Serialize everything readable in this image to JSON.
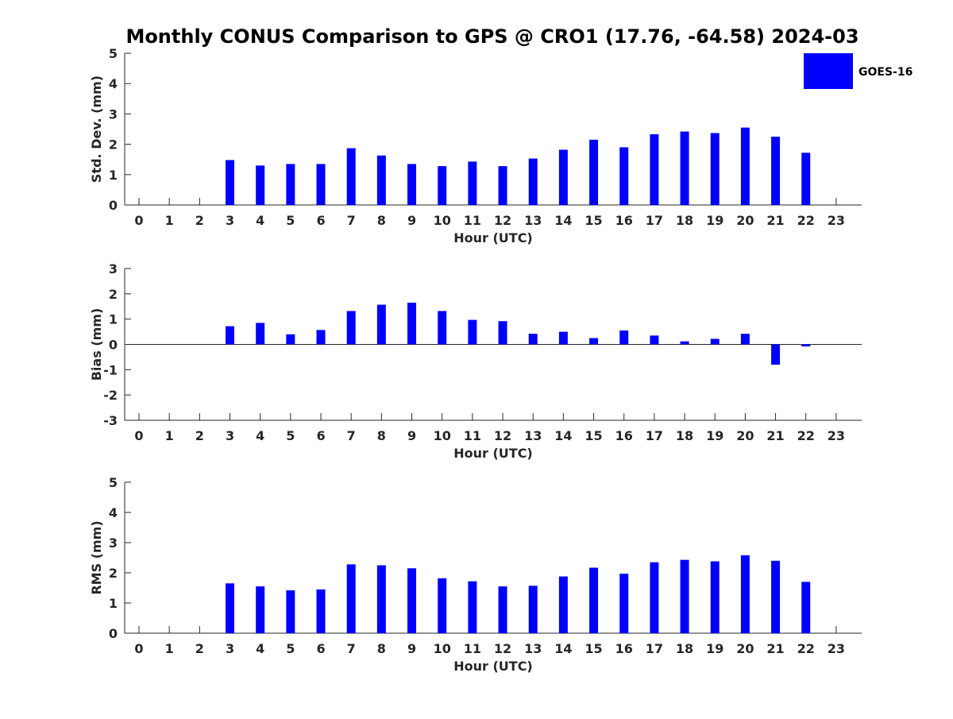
{
  "title": "Monthly CONUS Comparison to GPS @ CRO1 (17.76, -64.58) 2024-03",
  "legend": {
    "label": "GOES-16",
    "color": "#0000ff",
    "placement": "top-right"
  },
  "chart_data": [
    {
      "type": "bar",
      "ylabel": "Std. Dev. (mm)",
      "xlabel": "Hour (UTC)",
      "ylim": [
        0,
        5
      ],
      "yticks": [
        0,
        1,
        2,
        3,
        4,
        5
      ],
      "categories": [
        "0",
        "1",
        "2",
        "3",
        "4",
        "5",
        "6",
        "7",
        "8",
        "9",
        "10",
        "11",
        "12",
        "13",
        "14",
        "15",
        "16",
        "17",
        "18",
        "19",
        "20",
        "21",
        "22",
        "23"
      ],
      "series": [
        {
          "name": "GOES-16",
          "values": [
            null,
            null,
            null,
            1.48,
            1.3,
            1.35,
            1.35,
            1.87,
            1.63,
            1.35,
            1.28,
            1.43,
            1.28,
            1.53,
            1.82,
            2.15,
            1.9,
            2.33,
            2.42,
            2.37,
            2.55,
            2.25,
            1.72,
            null
          ]
        }
      ]
    },
    {
      "type": "bar",
      "ylabel": "Bias (mm)",
      "xlabel": "Hour (UTC)",
      "ylim": [
        -3,
        3
      ],
      "yticks": [
        -3,
        -2,
        -1,
        0,
        1,
        2,
        3
      ],
      "categories": [
        "0",
        "1",
        "2",
        "3",
        "4",
        "5",
        "6",
        "7",
        "8",
        "9",
        "10",
        "11",
        "12",
        "13",
        "14",
        "15",
        "16",
        "17",
        "18",
        "19",
        "20",
        "21",
        "22",
        "23"
      ],
      "series": [
        {
          "name": "GOES-16",
          "values": [
            null,
            null,
            null,
            0.72,
            0.85,
            0.4,
            0.57,
            1.32,
            1.57,
            1.65,
            1.32,
            0.97,
            0.92,
            0.42,
            0.5,
            0.25,
            0.55,
            0.35,
            0.12,
            0.22,
            0.42,
            -0.8,
            -0.08,
            null
          ]
        }
      ]
    },
    {
      "type": "bar",
      "ylabel": "RMS (mm)",
      "xlabel": "Hour (UTC)",
      "ylim": [
        0,
        5
      ],
      "yticks": [
        0,
        1,
        2,
        3,
        4,
        5
      ],
      "categories": [
        "0",
        "1",
        "2",
        "3",
        "4",
        "5",
        "6",
        "7",
        "8",
        "9",
        "10",
        "11",
        "12",
        "13",
        "14",
        "15",
        "16",
        "17",
        "18",
        "19",
        "20",
        "21",
        "22",
        "23"
      ],
      "series": [
        {
          "name": "GOES-16",
          "values": [
            null,
            null,
            null,
            1.65,
            1.55,
            1.42,
            1.45,
            2.28,
            2.25,
            2.15,
            1.82,
            1.72,
            1.55,
            1.57,
            1.88,
            2.17,
            1.97,
            2.35,
            2.43,
            2.38,
            2.58,
            2.4,
            1.7,
            null
          ]
        }
      ]
    }
  ]
}
